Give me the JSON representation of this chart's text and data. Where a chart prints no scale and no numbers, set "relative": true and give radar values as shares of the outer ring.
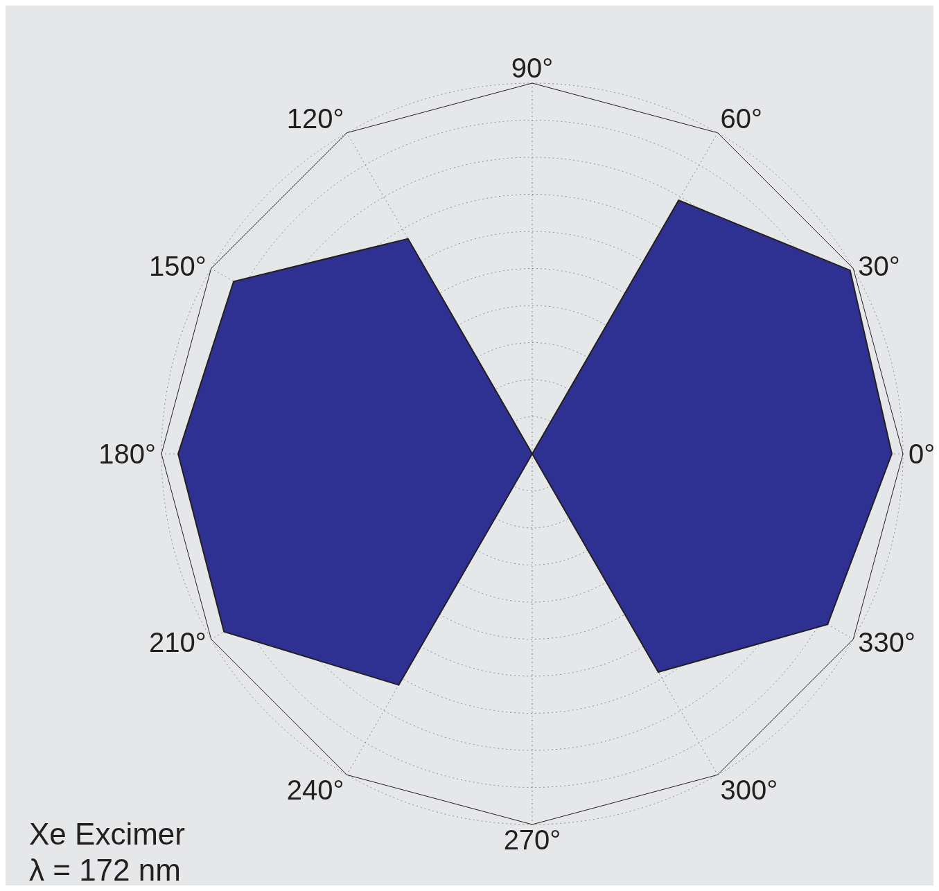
{
  "chart_data": {
    "type": "radar",
    "relative": true,
    "grid": true,
    "categories": [
      "90°",
      "60°",
      "30°",
      "0°",
      "330°",
      "300°",
      "270°",
      "240°",
      "210°",
      "180°",
      "150°",
      "120°"
    ],
    "series": [
      {
        "color": "#2e3192",
        "values": [
          0,
          0.79,
          0.99,
          0.97,
          0.92,
          0.68,
          0,
          0.72,
          0.96,
          0.955,
          0.93,
          0.67
        ]
      }
    ],
    "annotations": [
      "Xe Excimer",
      "λ = 172 nm"
    ]
  }
}
